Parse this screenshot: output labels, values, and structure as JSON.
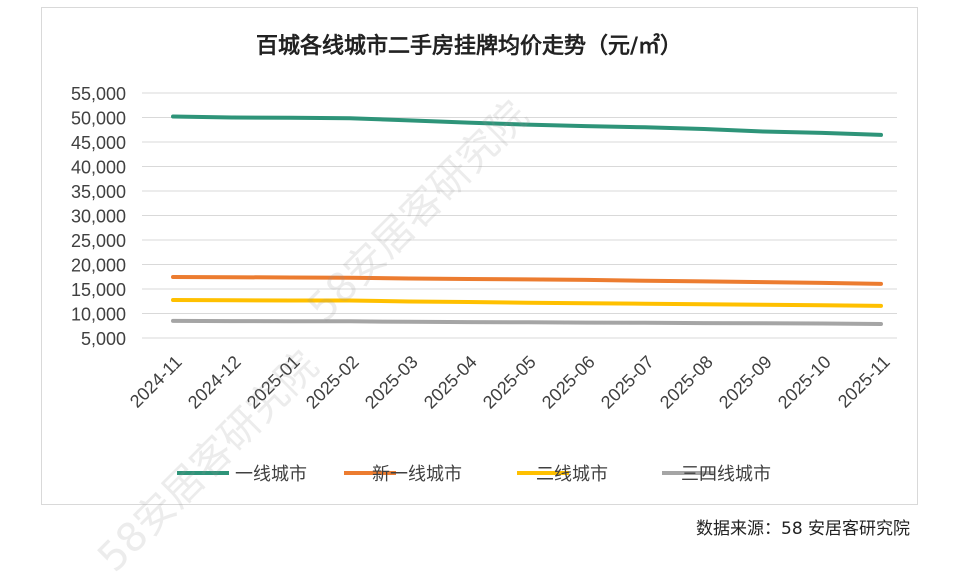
{
  "chart_data": {
    "type": "line",
    "title": "百城各线城市二手房挂牌均价走势（元/㎡）",
    "xlabel": "",
    "ylabel": "",
    "categories": [
      "2024-11",
      "2024-12",
      "2025-01",
      "2025-02",
      "2025-03",
      "2025-04",
      "2025-05",
      "2025-06",
      "2025-07",
      "2025-08",
      "2025-09",
      "2025-10",
      "2025-11"
    ],
    "y_ticks": [
      "55,000",
      "50,000",
      "45,000",
      "40,000",
      "35,000",
      "30,000",
      "25,000",
      "20,000",
      "15,000",
      "10,000",
      "5,000"
    ],
    "ylim": [
      5000,
      55000
    ],
    "grid": true,
    "legend_position": "bottom",
    "series": [
      {
        "name": "一线城市",
        "color": "#2e9479",
        "values": [
          50200,
          50000,
          49950,
          49850,
          49400,
          48950,
          48550,
          48250,
          48000,
          47650,
          47150,
          46850,
          46450
        ]
      },
      {
        "name": "新一线城市",
        "color": "#ec7c30",
        "values": [
          17450,
          17400,
          17350,
          17300,
          17150,
          17050,
          16950,
          16850,
          16700,
          16550,
          16400,
          16250,
          16050
        ]
      },
      {
        "name": "二线城市",
        "color": "#ffc000",
        "values": [
          12750,
          12700,
          12650,
          12650,
          12450,
          12350,
          12200,
          12100,
          12000,
          11900,
          11800,
          11700,
          11550
        ]
      },
      {
        "name": "三四线城市",
        "color": "#a5a5a5",
        "values": [
          8500,
          8450,
          8400,
          8400,
          8300,
          8250,
          8200,
          8150,
          8100,
          8050,
          8000,
          7950,
          7850
        ]
      }
    ]
  },
  "source_text": "数据来源：58 安居客研究院",
  "watermark_text": "58安居客研究院"
}
